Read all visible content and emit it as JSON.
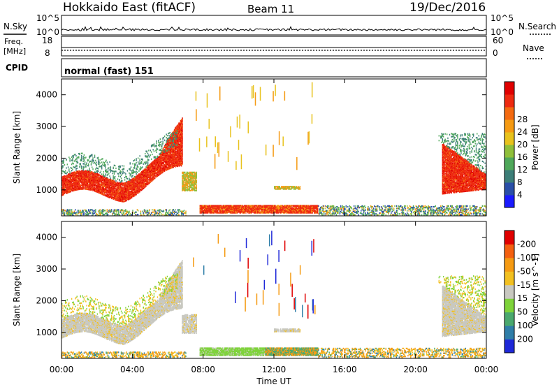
{
  "header": {
    "title": "Hokkaido East (fitACF)",
    "beam": "Beam 11",
    "date": "19/Dec/2016"
  },
  "noise_panel": {
    "left_label": "N.Sky",
    "right_label": "N.Search",
    "left_ticks": [
      "10^5",
      "10^0"
    ],
    "right_ticks": [
      "10^5",
      "10^0"
    ]
  },
  "freq_panel": {
    "left_label_1": "Freq.",
    "left_label_2": "[MHz]",
    "left_ticks": [
      "18",
      "8"
    ],
    "right_label": "Nave",
    "right_ticks": [
      "60",
      "0"
    ],
    "cpid_label": "CPID",
    "cpid_text": "normal (fast) 151"
  },
  "chart_data": [
    {
      "type": "heatmap",
      "title": "",
      "xlabel": "",
      "ylabel": "Slant Range [km]",
      "yticks": [
        "1000",
        "2000",
        "3000",
        "4000"
      ],
      "ylim": [
        180,
        4500
      ],
      "colorbar_label": "Power [dB]",
      "colorbar_ticks": [
        "4",
        "8",
        "12",
        "16",
        "20",
        "24",
        "28"
      ],
      "colorbar_colors": [
        "#1a1aff",
        "#2a4fa8",
        "#3c7e78",
        "#4fa85a",
        "#8fbf3a",
        "#e8c21c",
        "#f59a12",
        "#f46a10",
        "#ee2a10",
        "#e00000"
      ],
      "features": [
        {
          "desc": "E/F band",
          "t_start": 0,
          "t_end": 6.8,
          "range_km": [
            900,
            1700
          ],
          "value": 28
        },
        {
          "desc": "near band",
          "t_start": 7.8,
          "t_end": 14.5,
          "range_km": [
            300,
            520
          ],
          "value": 26
        },
        {
          "desc": "late F",
          "t_start": 21.5,
          "t_end": 24,
          "range_km": [
            900,
            2300
          ],
          "value": 26
        }
      ]
    },
    {
      "type": "heatmap",
      "title": "",
      "xlabel": "Time UT",
      "ylabel": "Slant Range [km]",
      "xticks": [
        "00:00",
        "04:00",
        "08:00",
        "12:00",
        "16:00",
        "20:00",
        "00:00"
      ],
      "yticks": [
        "1000",
        "2000",
        "3000",
        "4000"
      ],
      "ylim": [
        180,
        4500
      ],
      "colorbar_label": "Velocity [m s^-1]",
      "colorbar_ticks": [
        "200",
        "100",
        "50",
        "15",
        "-15",
        "-50",
        "-100",
        "-200"
      ],
      "colorbar_colors": [
        "#1e28d8",
        "#2f7ea8",
        "#4aa86e",
        "#7ed33a",
        "#c8c8c0",
        "#f2c020",
        "#f59a12",
        "#f46010",
        "#e00000"
      ],
      "features": [
        {
          "desc": "ground scatter",
          "t_start": 0,
          "t_end": 6.8,
          "range_km": [
            900,
            1700
          ],
          "value": 0
        },
        {
          "desc": "near band green",
          "t_start": 7.8,
          "t_end": 11.5,
          "range_km": [
            300,
            500
          ],
          "value": 50
        },
        {
          "desc": "late ground scatter",
          "t_start": 21.5,
          "t_end": 24,
          "range_km": [
            900,
            2300
          ],
          "value": 0
        }
      ]
    }
  ]
}
